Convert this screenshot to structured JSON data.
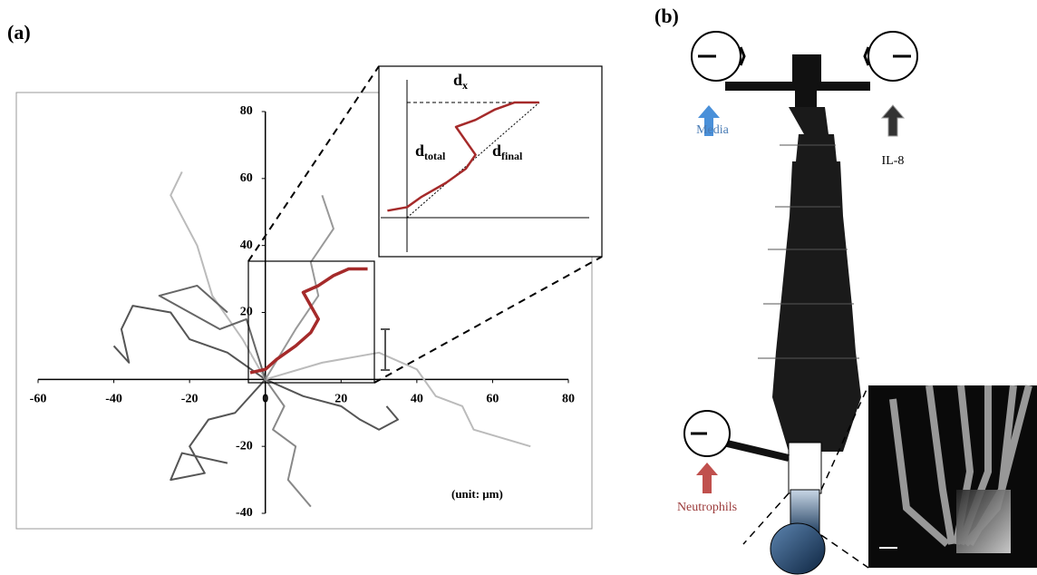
{
  "panel_a": {
    "label": "(a)",
    "unit_note": "(unit: μm)",
    "inset": {
      "dx": {
        "main": "d",
        "sub": "x"
      },
      "dtotal": {
        "main": "d",
        "sub": "total"
      },
      "dfinal": {
        "main": "d",
        "sub": "final"
      }
    }
  },
  "chart_data": {
    "type": "line",
    "xlim": [
      -60,
      80
    ],
    "ylim": [
      -40,
      80
    ],
    "xticks": [
      -60,
      -40,
      -20,
      0,
      20,
      40,
      60,
      80
    ],
    "yticks": [
      -40,
      -20,
      20,
      40,
      60,
      80
    ],
    "series": [
      {
        "color": "#555555",
        "x": [
          0,
          -10,
          -20,
          -25,
          -35,
          -38,
          -36,
          -40
        ],
        "values": [
          0,
          8,
          12,
          20,
          22,
          15,
          5,
          10
        ]
      },
      {
        "color": "#555555",
        "x": [
          0,
          -8,
          -15,
          -20,
          -16,
          -25,
          -22,
          -10
        ],
        "values": [
          0,
          -10,
          -12,
          -20,
          -28,
          -30,
          -22,
          -25
        ]
      },
      {
        "color": "#bbbbbb",
        "x": [
          0,
          -6,
          -14,
          -18,
          -25,
          -22
        ],
        "values": [
          0,
          12,
          25,
          40,
          55,
          62
        ]
      },
      {
        "color": "#555555",
        "x": [
          0,
          10,
          20,
          25,
          30,
          35,
          32
        ],
        "values": [
          0,
          -5,
          -8,
          -12,
          -15,
          -12,
          -8
        ]
      },
      {
        "color": "#bbbbbb",
        "x": [
          0,
          15,
          30,
          40,
          45,
          52,
          55,
          70
        ],
        "values": [
          0,
          5,
          8,
          3,
          -5,
          -8,
          -15,
          -20
        ]
      },
      {
        "color": "#999999",
        "x": [
          0,
          8,
          14,
          12,
          18,
          15
        ],
        "values": [
          0,
          15,
          25,
          35,
          45,
          55
        ]
      },
      {
        "color": "#666666",
        "x": [
          0,
          -5,
          -12,
          -20,
          -28,
          -18,
          -10
        ],
        "values": [
          0,
          18,
          15,
          20,
          25,
          28,
          20
        ]
      },
      {
        "color": "#888888",
        "x": [
          0,
          5,
          2,
          8,
          6,
          12
        ],
        "values": [
          0,
          -8,
          -15,
          -20,
          -30,
          -38
        ]
      },
      {
        "color": "#a52a2a",
        "x": [
          -4,
          0,
          3,
          8,
          12,
          14,
          12,
          10,
          14,
          18,
          22,
          27
        ],
        "values": [
          2,
          3,
          6,
          10,
          14,
          18,
          22,
          26,
          28,
          31,
          33,
          33
        ]
      }
    ]
  },
  "panel_b": {
    "label": "(b)",
    "media": "Media",
    "il8": "IL-8",
    "neutrophils": "Neutrophils"
  }
}
